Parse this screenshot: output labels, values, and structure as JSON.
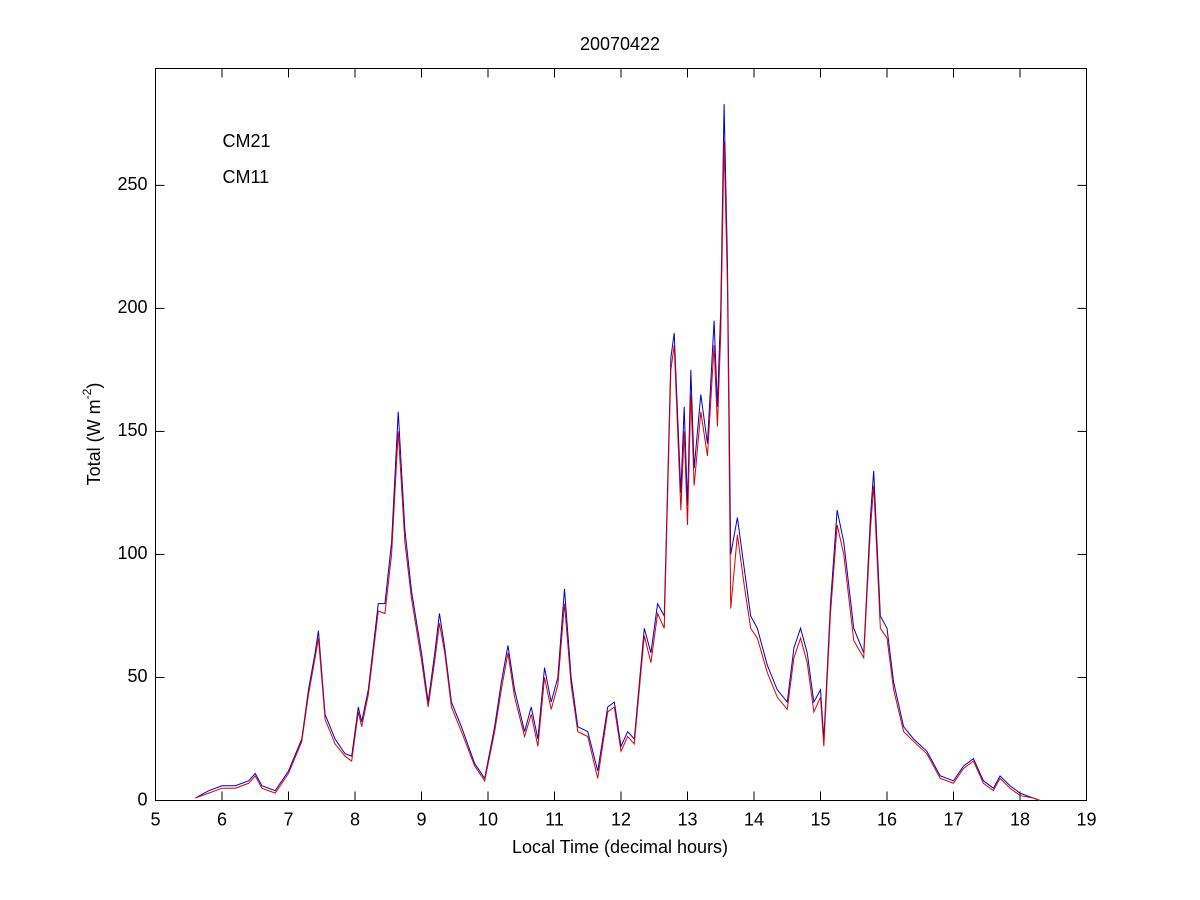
{
  "chart_data": {
    "type": "line",
    "title": "20070422",
    "x_label": "Local Time (decimal hours)",
    "y_label": {
      "text": "Total (W m",
      "superscript": "-2",
      "suffix": ")"
    },
    "x": [
      5.6,
      5.8,
      6.0,
      6.2,
      6.4,
      6.5,
      6.6,
      6.8,
      7.0,
      7.2,
      7.3,
      7.4,
      7.45,
      7.55,
      7.7,
      7.85,
      7.95,
      8.05,
      8.1,
      8.2,
      8.35,
      8.45,
      8.55,
      8.65,
      8.75,
      8.85,
      9.0,
      9.1,
      9.2,
      9.27,
      9.35,
      9.45,
      9.6,
      9.8,
      9.95,
      10.1,
      10.2,
      10.3,
      10.4,
      10.55,
      10.65,
      10.75,
      10.85,
      10.95,
      11.05,
      11.15,
      11.25,
      11.35,
      11.5,
      11.65,
      11.8,
      11.9,
      12.0,
      12.1,
      12.2,
      12.35,
      12.45,
      12.55,
      12.65,
      12.75,
      12.8,
      12.9,
      12.95,
      13.0,
      13.05,
      13.1,
      13.2,
      13.3,
      13.4,
      13.45,
      13.5,
      13.55,
      13.6,
      13.65,
      13.75,
      13.85,
      13.95,
      14.05,
      14.2,
      14.35,
      14.5,
      14.6,
      14.7,
      14.8,
      14.9,
      15.0,
      15.05,
      15.15,
      15.25,
      15.35,
      15.5,
      15.65,
      15.75,
      15.8,
      15.9,
      16.0,
      16.1,
      16.25,
      16.4,
      16.6,
      16.8,
      17.0,
      17.15,
      17.3,
      17.45,
      17.6,
      17.7,
      17.85,
      18.0,
      18.2,
      18.3
    ],
    "series": [
      {
        "name": "CM21",
        "color": "#0000cc",
        "values": [
          1,
          4,
          6,
          6,
          8,
          11,
          6,
          4,
          12,
          25,
          45,
          60,
          69,
          35,
          25,
          19,
          18,
          38,
          32,
          45,
          80,
          80,
          105,
          158,
          110,
          85,
          60,
          40,
          60,
          76,
          62,
          40,
          30,
          15,
          9,
          30,
          48,
          63,
          45,
          28,
          38,
          25,
          54,
          40,
          50,
          86,
          50,
          30,
          28,
          12,
          38,
          40,
          22,
          28,
          25,
          70,
          60,
          80,
          75,
          180,
          190,
          125,
          160,
          120,
          175,
          135,
          165,
          145,
          195,
          160,
          200,
          283,
          220,
          100,
          115,
          95,
          75,
          70,
          55,
          45,
          40,
          62,
          70,
          60,
          40,
          45,
          25,
          80,
          118,
          105,
          70,
          60,
          115,
          134,
          75,
          70,
          48,
          30,
          25,
          20,
          10,
          8,
          14,
          17,
          8,
          5,
          10,
          6,
          3,
          1,
          0
        ]
      },
      {
        "name": "CM11",
        "color": "#dd0000",
        "values": [
          1,
          3,
          5,
          5,
          7,
          10,
          5,
          3,
          11,
          24,
          43,
          58,
          66,
          33,
          23,
          18,
          16,
          36,
          30,
          43,
          77,
          76,
          100,
          150,
          105,
          82,
          57,
          38,
          57,
          72,
          60,
          38,
          28,
          14,
          8,
          28,
          45,
          60,
          42,
          26,
          35,
          22,
          50,
          37,
          47,
          80,
          47,
          28,
          26,
          9,
          36,
          38,
          20,
          26,
          23,
          67,
          56,
          76,
          70,
          175,
          185,
          118,
          150,
          112,
          165,
          128,
          158,
          140,
          185,
          152,
          190,
          268,
          210,
          78,
          108,
          88,
          70,
          66,
          52,
          42,
          37,
          58,
          66,
          56,
          36,
          42,
          22,
          76,
          112,
          100,
          65,
          58,
          110,
          128,
          70,
          66,
          45,
          28,
          24,
          19,
          9,
          7,
          13,
          16,
          7,
          4,
          9,
          5,
          2,
          1,
          0
        ]
      }
    ],
    "xlim": [
      5,
      19
    ],
    "xticks": [
      5,
      6,
      7,
      8,
      9,
      10,
      11,
      12,
      13,
      14,
      15,
      16,
      17,
      18,
      19
    ],
    "ylim": [
      0,
      297.5
    ],
    "yticks": [
      0,
      50,
      100,
      150,
      200,
      250
    ],
    "grid": false,
    "legend": "upper left"
  }
}
